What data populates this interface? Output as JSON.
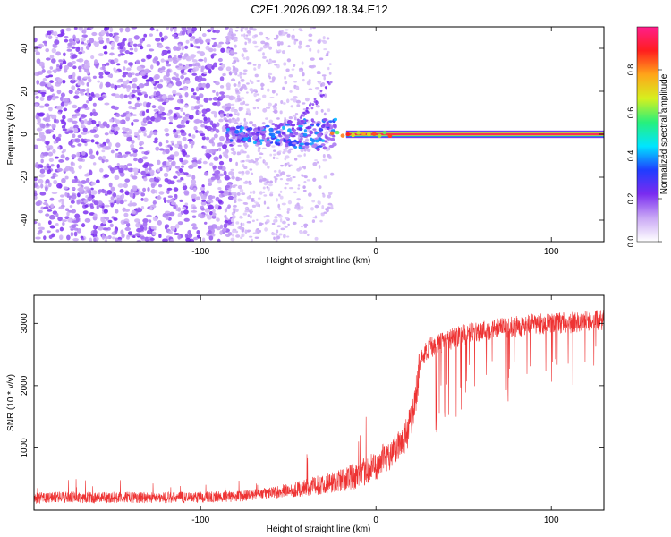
{
  "chart_data": [
    {
      "type": "heatmap",
      "title": "C2E1.2026.092.18.34.E12",
      "xlabel": "Height of straight line (km)",
      "ylabel": "Frequency (Hz)",
      "xlim": [
        -195,
        130
      ],
      "ylim": [
        -50,
        50
      ],
      "x_ticks": [
        -100,
        0,
        100
      ],
      "y_ticks": [
        -40,
        -20,
        0,
        20,
        40
      ],
      "colorbar": {
        "label": "Normalized spectral amplitude",
        "range": [
          0,
          1
        ],
        "ticks": [
          "0.0",
          "0.2",
          "0.4",
          "0.6",
          "0.8"
        ],
        "colormap": [
          "#ffffff",
          "#c9a8f5",
          "#7a2cf0",
          "#1f3dff",
          "#00e5ff",
          "#27f07c",
          "#d6f01e",
          "#ffa51a",
          "#ff1e1e",
          "#ff1e8c"
        ]
      },
      "features": {
        "noise_region_x": [
          -195,
          -82
        ],
        "sparse_region_x": [
          -82,
          -25
        ],
        "carrier_line_x": [
          -25,
          130
        ],
        "carrier_line_freq": 0,
        "carrier_line_amplitude": 0.95
      }
    },
    {
      "type": "line",
      "xlabel": "Height of straight line (km)",
      "ylabel": "SNR (10 * v/v)",
      "xlim": [
        -195,
        130
      ],
      "ylim": [
        0,
        3450
      ],
      "x_ticks": [
        -100,
        0,
        100
      ],
      "y_ticks": [
        1000,
        2000,
        3000
      ],
      "color": "#ee3333",
      "series": [
        {
          "x": [
            -195,
            -180,
            -160,
            -140,
            -120,
            -100,
            -80,
            -65,
            -50,
            -40,
            -30,
            -20,
            -10,
            0,
            10,
            18,
            22,
            25,
            30,
            40,
            50,
            60,
            70,
            80,
            90,
            100,
            110,
            120,
            130
          ],
          "values": [
            190,
            210,
            200,
            205,
            200,
            210,
            220,
            260,
            320,
            360,
            420,
            480,
            560,
            720,
            950,
            1250,
            1700,
            2350,
            2600,
            2720,
            2820,
            2880,
            2920,
            2950,
            2980,
            3000,
            3010,
            3030,
            3050
          ]
        }
      ]
    }
  ]
}
